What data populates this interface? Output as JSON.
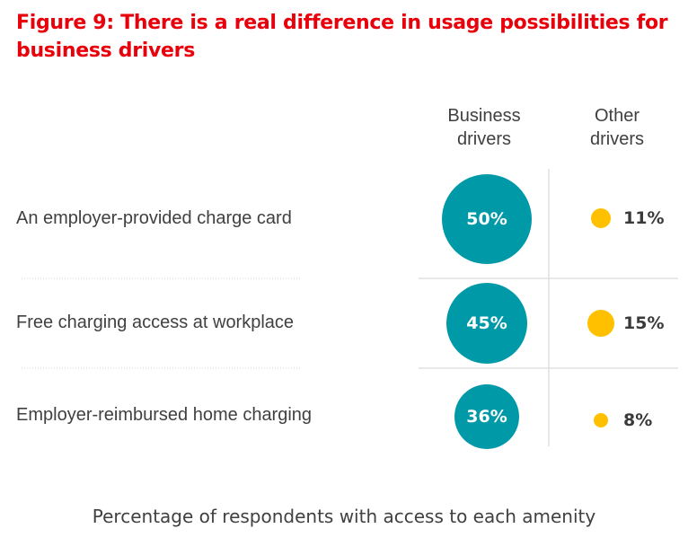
{
  "chart_data": {
    "type": "bubble-table",
    "title": "Figure 9: There is a real difference in usage possibilities for business drivers",
    "xlabel": "Percentage of respondents with access to each amenity",
    "categories": [
      "An employer-provided charge card",
      "Free charging access at workplace",
      "Employer-reimbursed home charging"
    ],
    "series": [
      {
        "name": "Business drivers",
        "values": [
          50,
          45,
          36
        ],
        "labels": [
          "50%",
          "45%",
          "36%"
        ],
        "color": "#0099a8"
      },
      {
        "name": "Other drivers",
        "values": [
          11,
          15,
          8
        ],
        "labels": [
          "11%",
          "15%",
          "8%"
        ],
        "color": "#ffc000"
      }
    ],
    "series_headers": [
      [
        "Business",
        "drivers"
      ],
      [
        "Other",
        "drivers"
      ]
    ]
  }
}
